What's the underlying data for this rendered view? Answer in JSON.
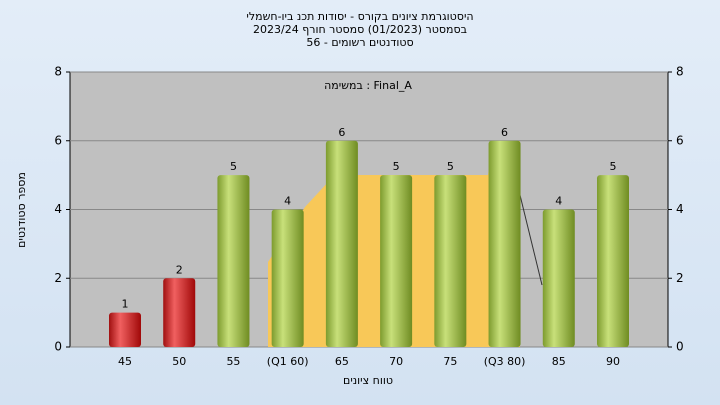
{
  "chart_data": {
    "type": "bar",
    "title": [
      "היסטוגרמת ציונים בקורס - יסודות תכנ ביו-חשמלי",
      "בסמסטר  (01/2023)  סמסטר חורף  2023/24",
      "סטודנטים רשומים - 56"
    ],
    "annotation": "במשימה : Final_A",
    "x_label": "טווח ציונים",
    "y_label": "מספר סטודנטים",
    "categories": [
      "45",
      "50",
      "55",
      "(Q1 60)",
      "65",
      "70",
      "75",
      "(Q3 80)",
      "85",
      "90"
    ],
    "values": [
      1,
      2,
      5,
      4,
      6,
      5,
      5,
      6,
      4,
      5
    ],
    "colors": [
      "red",
      "red",
      "green",
      "green",
      "green",
      "green",
      "green",
      "green",
      "green",
      "green"
    ],
    "ylim": [
      0,
      8
    ],
    "yticks": [
      0,
      2,
      4,
      6,
      8
    ],
    "y2lim": [
      0,
      8
    ],
    "y2ticks": [
      0,
      2,
      4,
      6,
      8
    ],
    "grid": true
  }
}
